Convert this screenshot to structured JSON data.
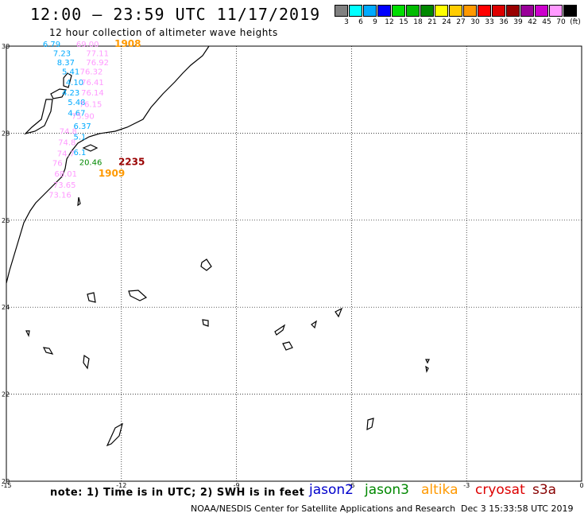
{
  "header": {
    "title": "12:00 – 23:59 UTC 11/17/2019",
    "subtitle": "12 hour collection of altimeter wave heights"
  },
  "legend": {
    "colors": [
      "#808080",
      "#00ffff",
      "#00aaff",
      "#0000ff",
      "#00dd00",
      "#00bb00",
      "#008800",
      "#ffff00",
      "#ffcc00",
      "#ff9900",
      "#ff0000",
      "#dd0000",
      "#990000",
      "#990099",
      "#cc00cc",
      "#ff99ff",
      "#000000"
    ],
    "labels": [
      "3",
      "6",
      "9",
      "12",
      "15",
      "18",
      "21",
      "24",
      "27",
      "30",
      "33",
      "36",
      "39",
      "42",
      "45",
      "70",
      "(ft)"
    ]
  },
  "axes": {
    "lat_labels": [
      "30",
      "28",
      "26",
      "24",
      "22",
      "20"
    ],
    "lon_labels": [
      "-15",
      "-12",
      "-9",
      "-6",
      "-3",
      "0"
    ]
  },
  "wave_labels": [
    {
      "text": "6.79",
      "lon": -14.05,
      "lat": 29.98,
      "color": "#00aaff"
    },
    {
      "text": "69.00",
      "lon": -13.18,
      "lat": 29.98,
      "color": "#ff99ff"
    },
    {
      "text": "1908",
      "lon": -12.18,
      "lat": 29.98,
      "color": "#ff9900",
      "bold": true
    },
    {
      "text": "7.23",
      "lon": -13.78,
      "lat": 29.77,
      "color": "#00aaff"
    },
    {
      "text": "77.11",
      "lon": -12.92,
      "lat": 29.77,
      "color": "#ff99ff"
    },
    {
      "text": "8.37",
      "lon": -13.68,
      "lat": 29.56,
      "color": "#00aaff"
    },
    {
      "text": "76.92",
      "lon": -12.92,
      "lat": 29.56,
      "color": "#ff99ff"
    },
    {
      "text": "5.41",
      "lon": -13.55,
      "lat": 29.35,
      "color": "#00aaff"
    },
    {
      "text": "76.32",
      "lon": -13.08,
      "lat": 29.35,
      "color": "#ff99ff"
    },
    {
      "text": "4.10",
      "lon": -13.45,
      "lat": 29.1,
      "color": "#00aaff"
    },
    {
      "text": "76.41",
      "lon": -13.05,
      "lat": 29.1,
      "color": "#ff99ff"
    },
    {
      "text": "4.23",
      "lon": -13.55,
      "lat": 28.87,
      "color": "#00aaff"
    },
    {
      "text": "76.14",
      "lon": -13.05,
      "lat": 28.87,
      "color": "#ff99ff"
    },
    {
      "text": "5.48",
      "lon": -13.4,
      "lat": 28.65,
      "color": "#00aaff"
    },
    {
      "text": "76.15",
      "lon": -13.1,
      "lat": 28.6,
      "color": "#ff99ff"
    },
    {
      "text": "4.67",
      "lon": -13.4,
      "lat": 28.4,
      "color": "#00aaff"
    },
    {
      "text": "75.90",
      "lon": -13.3,
      "lat": 28.33,
      "color": "#ff99ff"
    },
    {
      "text": "6.37",
      "lon": -13.25,
      "lat": 28.1,
      "color": "#00aaff"
    },
    {
      "text": "74.8",
      "lon": -13.62,
      "lat": 27.98,
      "color": "#ff99ff"
    },
    {
      "text": "5.1",
      "lon": -13.25,
      "lat": 27.85,
      "color": "#00aaff"
    },
    {
      "text": "74.8",
      "lon": -13.65,
      "lat": 27.72,
      "color": "#ff99ff"
    },
    {
      "text": "74.7",
      "lon": -13.68,
      "lat": 27.47,
      "color": "#ff99ff"
    },
    {
      "text": "6.1",
      "lon": -13.25,
      "lat": 27.5,
      "color": "#00aaff"
    },
    {
      "text": "76",
      "lon": -13.8,
      "lat": 27.25,
      "color": "#ff99ff"
    },
    {
      "text": "20.46",
      "lon": -13.1,
      "lat": 27.27,
      "color": "#008800"
    },
    {
      "text": "2235",
      "lon": -12.08,
      "lat": 27.27,
      "color": "#990000",
      "bold": true
    },
    {
      "text": "68.01",
      "lon": -13.75,
      "lat": 27.0,
      "color": "#ff99ff"
    },
    {
      "text": "1909",
      "lon": -12.6,
      "lat": 27.0,
      "color": "#ff9900",
      "bold": true
    },
    {
      "text": "73.65",
      "lon": -13.78,
      "lat": 26.75,
      "color": "#ff99ff"
    },
    {
      "text": "73.16",
      "lon": -13.9,
      "lat": 26.52,
      "color": "#ff99ff"
    }
  ],
  "footer": {
    "note": "note:  1) Time is in UTC;  2) SWH is in feet",
    "satellites": [
      {
        "name": "jason2",
        "color": "#0000cc"
      },
      {
        "name": "jason3",
        "color": "#008800"
      },
      {
        "name": "altika",
        "color": "#ff9900"
      },
      {
        "name": "cryosat",
        "color": "#dd0000"
      },
      {
        "name": "s3a",
        "color": "#880000"
      }
    ],
    "credit": "NOAA/NESDIS Center for Satellite Applications and Research",
    "timestamp": "Dec  3 15:33:58 UTC 2019"
  }
}
